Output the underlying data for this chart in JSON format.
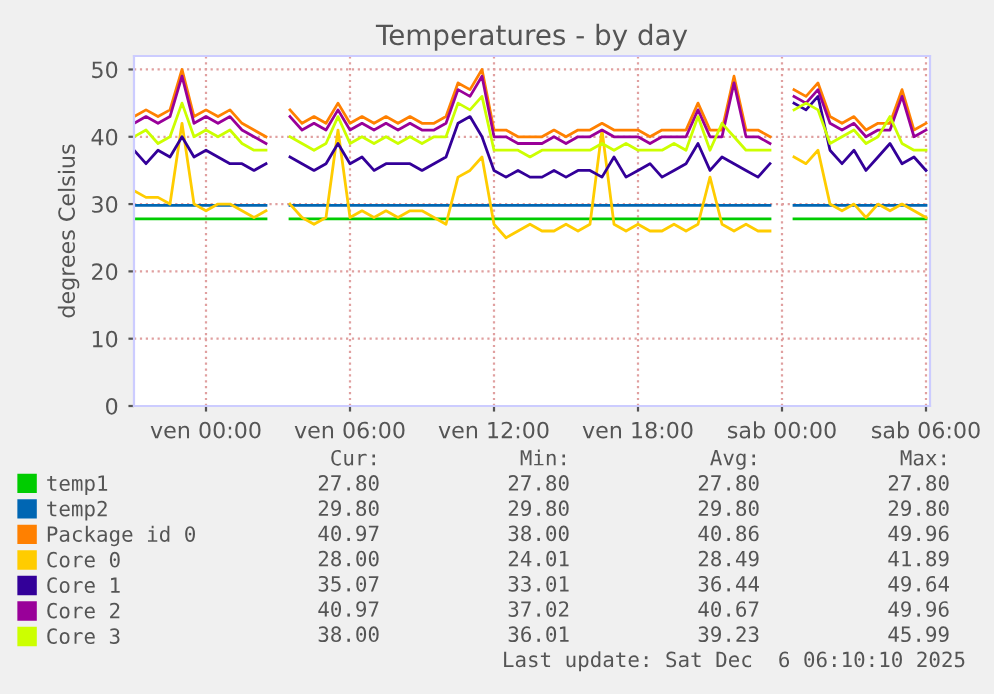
{
  "chart_data": {
    "type": "line",
    "title": "Temperatures - by day",
    "ylabel": "degrees Celsius",
    "x": [
      "2025-12-04T21:00",
      "2025-12-04T21:30",
      "2025-12-04T22:00",
      "2025-12-04T22:30",
      "2025-12-04T23:00",
      "2025-12-04T23:30",
      "2025-12-05T00:00",
      "2025-12-05T00:30",
      "2025-12-05T01:00",
      "2025-12-05T01:30",
      "2025-12-05T02:00",
      "2025-12-05T02:30",
      "2025-12-05T03:00",
      "2025-12-05T03:30",
      "2025-12-05T04:00",
      "2025-12-05T04:30",
      "2025-12-05T05:00",
      "2025-12-05T05:30",
      "2025-12-05T06:00",
      "2025-12-05T06:30",
      "2025-12-05T07:00",
      "2025-12-05T07:30",
      "2025-12-05T08:00",
      "2025-12-05T08:30",
      "2025-12-05T09:00",
      "2025-12-05T09:30",
      "2025-12-05T10:00",
      "2025-12-05T10:30",
      "2025-12-05T11:00",
      "2025-12-05T11:30",
      "2025-12-05T12:00",
      "2025-12-05T12:30",
      "2025-12-05T13:00",
      "2025-12-05T13:30",
      "2025-12-05T14:00",
      "2025-12-05T14:30",
      "2025-12-05T15:00",
      "2025-12-05T15:30",
      "2025-12-05T16:00",
      "2025-12-05T16:30",
      "2025-12-05T17:00",
      "2025-12-05T17:30",
      "2025-12-05T18:00",
      "2025-12-05T18:30",
      "2025-12-05T19:00",
      "2025-12-05T19:30",
      "2025-12-05T20:00",
      "2025-12-05T20:30",
      "2025-12-05T21:00",
      "2025-12-05T21:30",
      "2025-12-05T22:00",
      "2025-12-05T22:30",
      "2025-12-05T23:00",
      "2025-12-05T23:30",
      "2025-12-06T00:00",
      "2025-12-06T00:30",
      "2025-12-06T01:00",
      "2025-12-06T01:30",
      "2025-12-06T02:00",
      "2025-12-06T02:30",
      "2025-12-06T03:00",
      "2025-12-06T03:30",
      "2025-12-06T04:00",
      "2025-12-06T04:30",
      "2025-12-06T05:00",
      "2025-12-06T05:30",
      "2025-12-06T06:00"
    ],
    "xlim": [
      "2025-12-04T21:00",
      "2025-12-06T06:10"
    ],
    "xticks": [
      {
        "value": "2025-12-05T00:00",
        "label": "ven 00:00"
      },
      {
        "value": "2025-12-05T06:00",
        "label": "ven 06:00"
      },
      {
        "value": "2025-12-05T12:00",
        "label": "ven 12:00"
      },
      {
        "value": "2025-12-05T18:00",
        "label": "ven 18:00"
      },
      {
        "value": "2025-12-06T00:00",
        "label": "sab 00:00"
      },
      {
        "value": "2025-12-06T06:00",
        "label": "sab 06:00"
      }
    ],
    "ylim": [
      0,
      52
    ],
    "yticks": [
      0,
      10,
      20,
      30,
      40,
      50
    ],
    "grid": true,
    "legend": "bottom",
    "line_style": "solid",
    "marker": "none",
    "series": [
      {
        "name": "temp1",
        "color": "#00cc00",
        "values": [
          27.8,
          27.8,
          27.8,
          27.8,
          27.8,
          27.8,
          27.8,
          27.8,
          27.8,
          27.8,
          27.8,
          27.8,
          null,
          27.8,
          27.8,
          27.8,
          27.8,
          27.8,
          27.8,
          27.8,
          27.8,
          27.8,
          27.8,
          27.8,
          27.8,
          27.8,
          27.8,
          27.8,
          27.8,
          27.8,
          27.8,
          27.8,
          27.8,
          27.8,
          27.8,
          27.8,
          27.8,
          27.8,
          27.8,
          27.8,
          27.8,
          27.8,
          27.8,
          27.8,
          27.8,
          27.8,
          27.8,
          27.8,
          27.8,
          27.8,
          27.8,
          27.8,
          27.8,
          27.8,
          null,
          27.8,
          27.8,
          27.8,
          27.8,
          27.8,
          27.8,
          27.8,
          27.8,
          27.8,
          27.8,
          27.8,
          27.8
        ]
      },
      {
        "name": "temp2",
        "color": "#0066b3",
        "values": [
          29.8,
          29.8,
          29.8,
          29.8,
          29.8,
          29.8,
          29.8,
          29.8,
          29.8,
          29.8,
          29.8,
          29.8,
          null,
          29.8,
          29.8,
          29.8,
          29.8,
          29.8,
          29.8,
          29.8,
          29.8,
          29.8,
          29.8,
          29.8,
          29.8,
          29.8,
          29.8,
          29.8,
          29.8,
          29.8,
          29.8,
          29.8,
          29.8,
          29.8,
          29.8,
          29.8,
          29.8,
          29.8,
          29.8,
          29.8,
          29.8,
          29.8,
          29.8,
          29.8,
          29.8,
          29.8,
          29.8,
          29.8,
          29.8,
          29.8,
          29.8,
          29.8,
          29.8,
          29.8,
          null,
          29.8,
          29.8,
          29.8,
          29.8,
          29.8,
          29.8,
          29.8,
          29.8,
          29.8,
          29.8,
          29.8,
          29.8
        ]
      },
      {
        "name": "Package id 0",
        "color": "#ff8000",
        "values": [
          43,
          44,
          43,
          44,
          50,
          43,
          44,
          43,
          44,
          42,
          41,
          40,
          null,
          44,
          42,
          43,
          42,
          45,
          42,
          43,
          42,
          43,
          42,
          43,
          42,
          42,
          43,
          48,
          47,
          50,
          41,
          41,
          40,
          40,
          40,
          41,
          40,
          41,
          41,
          42,
          41,
          41,
          41,
          40,
          41,
          41,
          41,
          45,
          41,
          41,
          49,
          41,
          41,
          40,
          null,
          47,
          46,
          48,
          43,
          42,
          43,
          41,
          42,
          42,
          47,
          41,
          42
        ]
      },
      {
        "name": "Core 0",
        "color": "#ffcc00",
        "values": [
          32,
          31,
          31,
          30,
          42,
          30,
          29,
          30,
          30,
          29,
          28,
          29,
          null,
          30,
          28,
          27,
          28,
          41,
          28,
          29,
          28,
          29,
          28,
          29,
          29,
          28,
          27,
          34,
          35,
          37,
          27,
          25,
          26,
          27,
          26,
          26,
          27,
          26,
          27,
          41,
          27,
          26,
          27,
          26,
          26,
          27,
          26,
          27,
          34,
          27,
          26,
          27,
          26,
          26,
          null,
          37,
          36,
          38,
          30,
          29,
          30,
          28,
          30,
          29,
          30,
          29,
          28
        ]
      },
      {
        "name": "Core 1",
        "color": "#330099",
        "values": [
          38,
          36,
          38,
          37,
          40,
          37,
          38,
          37,
          36,
          36,
          35,
          36,
          null,
          37,
          36,
          35,
          36,
          39,
          36,
          37,
          35,
          36,
          36,
          36,
          35,
          36,
          37,
          42,
          43,
          40,
          35,
          34,
          35,
          34,
          34,
          35,
          34,
          35,
          35,
          34,
          37,
          34,
          35,
          36,
          34,
          35,
          36,
          39,
          35,
          37,
          36,
          35,
          34,
          36,
          null,
          45,
          44,
          46,
          38,
          36,
          38,
          35,
          37,
          39,
          36,
          37,
          35
        ]
      },
      {
        "name": "Core 2",
        "color": "#990099",
        "values": [
          42,
          43,
          42,
          43,
          49,
          42,
          43,
          42,
          43,
          41,
          40,
          39,
          null,
          43,
          41,
          42,
          41,
          44,
          41,
          42,
          41,
          42,
          41,
          42,
          41,
          41,
          42,
          47,
          46,
          49,
          40,
          40,
          39,
          39,
          39,
          40,
          39,
          40,
          40,
          41,
          40,
          40,
          40,
          39,
          40,
          40,
          40,
          44,
          40,
          40,
          48,
          40,
          40,
          39,
          null,
          46,
          45,
          47,
          42,
          41,
          42,
          40,
          41,
          41,
          46,
          40,
          41
        ]
      },
      {
        "name": "Core 3",
        "color": "#ccff00",
        "values": [
          40,
          41,
          39,
          40,
          45,
          40,
          41,
          40,
          41,
          39,
          38,
          38,
          null,
          40,
          39,
          38,
          39,
          43,
          39,
          40,
          39,
          40,
          39,
          40,
          39,
          40,
          40,
          45,
          44,
          46,
          38,
          38,
          38,
          37,
          38,
          38,
          38,
          38,
          38,
          39,
          38,
          39,
          38,
          38,
          38,
          39,
          38,
          43,
          38,
          42,
          40,
          38,
          38,
          38,
          null,
          44,
          45,
          44,
          39,
          40,
          41,
          39,
          40,
          43,
          39,
          38,
          38
        ]
      }
    ],
    "annotations": [
      "Cur:",
      "Min:",
      "Avg:",
      "Max:",
      "27.80",
      "27.80",
      "27.80",
      "27.80",
      "29.80",
      "29.80",
      "29.80",
      "29.80",
      "40.97",
      "38.00",
      "40.86",
      "49.96",
      "28.00",
      "24.01",
      "28.49",
      "41.89",
      "35.07",
      "33.01",
      "36.44",
      "49.64",
      "40.97",
      "37.02",
      "40.67",
      "49.96",
      "38.00",
      "36.01",
      "39.23",
      "45.99",
      "Last update: Sat Dec  6 06:10:10 2025"
    ]
  }
}
